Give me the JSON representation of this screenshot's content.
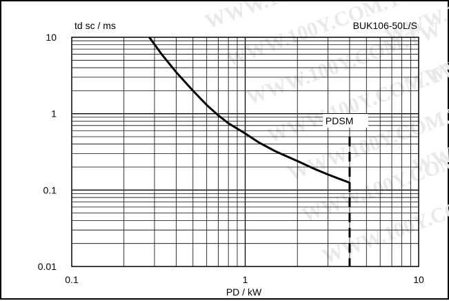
{
  "chart_data": {
    "type": "line",
    "title": "BUK106-50L/S",
    "xlabel": "PD / kW",
    "ylabel": "td sc / ms",
    "xscale": "log",
    "yscale": "log",
    "xlim": [
      0.1,
      10
    ],
    "ylim": [
      0.01,
      10
    ],
    "x_tick_labels": [
      "0.1",
      "1",
      "10"
    ],
    "y_tick_labels": [
      "10",
      "1",
      "0.1",
      "0.01"
    ],
    "grid": true,
    "series": [
      {
        "x": [
          0.28,
          0.33,
          0.4,
          0.5,
          0.6,
          0.7,
          0.8,
          1.0,
          1.2,
          1.5,
          2.0,
          2.5,
          3.0,
          3.5,
          4.0
        ],
        "y": [
          10,
          6.0,
          3.5,
          2.0,
          1.3,
          0.95,
          0.75,
          0.55,
          0.42,
          0.32,
          0.24,
          0.19,
          0.16,
          0.14,
          0.125
        ]
      }
    ],
    "annotations": [
      {
        "text": "PDSM",
        "x": 4.0,
        "y_range": [
          0.01,
          0.5
        ],
        "style": "dashed-vertical"
      }
    ]
  },
  "watermark": "WWW.100Y.COM.TW"
}
